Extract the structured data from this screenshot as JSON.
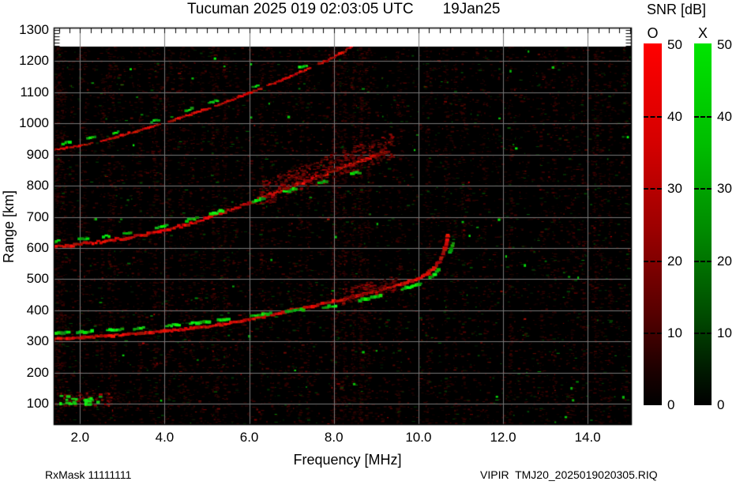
{
  "title": {
    "station_time": "Tucuman 2025 019 02:03:05 UTC",
    "date": "19Jan25"
  },
  "colorbar": {
    "title": "SNR [dB]",
    "o_label": "O",
    "x_label": "X",
    "tick_values": [
      50,
      40,
      30,
      20,
      10,
      0
    ],
    "tick_labels": [
      "50",
      "40",
      "30",
      "20",
      "10",
      "0"
    ],
    "o_top_color": "#ff0000",
    "x_top_color": "#00dd00",
    "bottom_color": "#000000"
  },
  "axes": {
    "x_label": "Frequency [MHz]",
    "y_label": "Range [km]",
    "x_tick_values": [
      2,
      4,
      6,
      8,
      10,
      12,
      14
    ],
    "x_tick_labels": [
      "2.0",
      "4.0",
      "6.0",
      "8.0",
      "10.0",
      "12.0",
      "14.0"
    ],
    "y_tick_values": [
      1300,
      1200,
      1100,
      1000,
      900,
      800,
      700,
      600,
      500,
      400,
      300,
      200,
      100
    ],
    "y_tick_labels": [
      "1300",
      "1200",
      "1100",
      "1000",
      "900",
      "800",
      "700",
      "600",
      "500",
      "400",
      "300",
      "200",
      "100"
    ]
  },
  "footer": {
    "left": "RxMask 11111111",
    "right": "VIPIR  TMJ20_2025019020305.RIQ"
  },
  "chart_data": {
    "type": "heatmap",
    "description": "VIPIR ionogram: red = O-mode echoes, green = X-mode echoes, intensity = SNR [dB]",
    "title": "Tucuman 2025 019 02:03:05 UTC",
    "date_label": "19Jan25",
    "xlabel": "Frequency [MHz]",
    "ylabel": "Range [km]",
    "xlim_mhz": [
      1.38,
      15.04
    ],
    "ylim_km": [
      30,
      1310
    ],
    "x_major_ticks": [
      2,
      4,
      6,
      8,
      10,
      12,
      14
    ],
    "y_major_ticks": [
      100,
      200,
      300,
      400,
      500,
      600,
      700,
      800,
      900,
      1000,
      1100,
      1200,
      1300
    ],
    "grid": true,
    "snr_scale": {
      "label": "SNR [dB]",
      "min": 0,
      "max": 50
    },
    "series": [
      {
        "name": "F-trace 1-hop O-mode",
        "mode": "O",
        "points": [
          [
            1.38,
            308
          ],
          [
            2.0,
            312
          ],
          [
            2.5,
            316
          ],
          [
            3.0,
            321
          ],
          [
            3.5,
            326
          ],
          [
            4.0,
            332
          ],
          [
            4.5,
            339
          ],
          [
            5.0,
            347
          ],
          [
            5.5,
            357
          ],
          [
            6.0,
            370
          ],
          [
            6.5,
            385
          ],
          [
            7.0,
            400
          ],
          [
            7.5,
            414
          ],
          [
            8.0,
            428
          ],
          [
            8.5,
            444
          ],
          [
            9.0,
            461
          ],
          [
            9.5,
            479
          ],
          [
            9.8,
            492
          ],
          [
            10.0,
            502
          ],
          [
            10.2,
            517
          ],
          [
            10.35,
            532
          ],
          [
            10.5,
            556
          ],
          [
            10.6,
            585
          ],
          [
            10.66,
            615
          ],
          [
            10.71,
            648
          ]
        ],
        "style": {
          "w": 5,
          "h": 3.4,
          "spacing": 3.2,
          "jitter": 1.0,
          "cloud": {
            "fmin": 8.2,
            "fmax": 9.5,
            "dy": 10,
            "count": 140
          }
        }
      },
      {
        "name": "F-trace 1-hop X-mode",
        "mode": "X",
        "points": [
          [
            1.38,
            326
          ],
          [
            2.0,
            330
          ],
          [
            2.5,
            334
          ],
          [
            3.0,
            338
          ],
          [
            3.5,
            343
          ],
          [
            4.0,
            349
          ],
          [
            4.5,
            356
          ],
          [
            5.0,
            363
          ],
          [
            5.5,
            372
          ],
          [
            6.0,
            381
          ],
          [
            6.5,
            390
          ],
          [
            7.0,
            398
          ],
          [
            7.5,
            406
          ],
          [
            8.0,
            413
          ],
          [
            8.5,
            428
          ],
          [
            9.0,
            444
          ],
          [
            9.5,
            462
          ],
          [
            10.0,
            484
          ],
          [
            10.2,
            498
          ],
          [
            10.4,
            517
          ],
          [
            10.55,
            540
          ],
          [
            10.68,
            568
          ],
          [
            10.78,
            598
          ],
          [
            10.84,
            620
          ]
        ],
        "style": {
          "w": 5,
          "h": 3.4,
          "spacing": 3.2,
          "jitter": 1.0,
          "seg": {
            "on": [
              12,
              30
            ],
            "off": [
              6,
              26
            ]
          }
        }
      },
      {
        "name": "F-trace 2-hop O-mode",
        "mode": "O",
        "points": [
          [
            1.38,
            604
          ],
          [
            2.0,
            612
          ],
          [
            2.5,
            620
          ],
          [
            3.0,
            630
          ],
          [
            3.5,
            642
          ],
          [
            4.0,
            656
          ],
          [
            4.5,
            674
          ],
          [
            5.0,
            695
          ],
          [
            5.5,
            719
          ],
          [
            6.0,
            745
          ],
          [
            6.5,
            771
          ],
          [
            7.0,
            797
          ],
          [
            7.5,
            822
          ],
          [
            8.0,
            848
          ],
          [
            8.5,
            872
          ],
          [
            9.0,
            897
          ],
          [
            9.35,
            915
          ]
        ],
        "style": {
          "w": 5,
          "h": 3.2,
          "spacing": 3.4,
          "jitter": 1.6,
          "cloud": {
            "fmin": 6.2,
            "fmax": 9.4,
            "dy": 16,
            "count": 500
          }
        }
      },
      {
        "name": "F-trace 2-hop X-mode",
        "mode": "X",
        "points": [
          [
            1.38,
            620
          ],
          [
            2.0,
            627
          ],
          [
            3.0,
            644
          ],
          [
            4.0,
            668
          ],
          [
            5.0,
            705
          ],
          [
            5.5,
            725
          ],
          [
            6.0,
            747
          ],
          [
            6.5,
            767
          ],
          [
            7.0,
            786
          ],
          [
            7.5,
            804
          ],
          [
            8.0,
            820
          ],
          [
            8.5,
            839
          ],
          [
            9.0,
            858
          ],
          [
            9.15,
            866
          ]
        ],
        "style": {
          "w": 5,
          "h": 3.2,
          "spacing": 3.4,
          "jitter": 1.4,
          "seg": {
            "on": [
              8,
              20
            ],
            "off": [
              12,
              42
            ]
          }
        }
      },
      {
        "name": "F-trace 3-hop O-mode",
        "mode": "O",
        "points": [
          [
            1.38,
            916
          ],
          [
            2.0,
            928
          ],
          [
            2.5,
            944
          ],
          [
            3.0,
            962
          ],
          [
            3.5,
            982
          ],
          [
            4.0,
            1002
          ],
          [
            4.5,
            1024
          ],
          [
            5.0,
            1047
          ],
          [
            5.5,
            1071
          ],
          [
            6.0,
            1097
          ],
          [
            6.5,
            1124
          ],
          [
            7.0,
            1152
          ],
          [
            7.5,
            1181
          ],
          [
            8.0,
            1212
          ],
          [
            8.3,
            1236
          ],
          [
            8.45,
            1252
          ]
        ],
        "style": {
          "w": 4,
          "h": 2.6,
          "spacing": 3.4,
          "jitter": 0.8,
          "seg": {
            "on": [
              35,
              90
            ],
            "off": [
              3,
              9
            ]
          }
        }
      },
      {
        "name": "F-trace 3-hop X-mode",
        "mode": "X",
        "points": [
          [
            1.6,
            936
          ],
          [
            2.2,
            952
          ],
          [
            2.8,
            970
          ],
          [
            3.4,
            992
          ],
          [
            4.0,
            1018
          ],
          [
            4.6,
            1044
          ],
          [
            5.2,
            1072
          ],
          [
            5.8,
            1102
          ],
          [
            6.4,
            1133
          ],
          [
            7.0,
            1168
          ],
          [
            7.6,
            1200
          ],
          [
            8.1,
            1228
          ]
        ],
        "style": {
          "w": 4,
          "h": 3,
          "spacing": 3.0,
          "jitter": 1.2,
          "seg": {
            "on": [
              5,
              13
            ],
            "off": [
              18,
              55
            ]
          }
        }
      }
    ],
    "es_cluster": {
      "fmin": 1.5,
      "fmax": 2.75,
      "km_min": 95,
      "km_max": 138,
      "green_count": 26,
      "red_count": 60
    },
    "noise": {
      "seed": 1337,
      "base_red": 5200,
      "base_green": 1050,
      "mid_red": 420,
      "mid_green": 170,
      "bright_green": 40,
      "bright_red": 55,
      "stripes": 68,
      "left_edge_red": 480,
      "es_band_red": 130
    }
  }
}
